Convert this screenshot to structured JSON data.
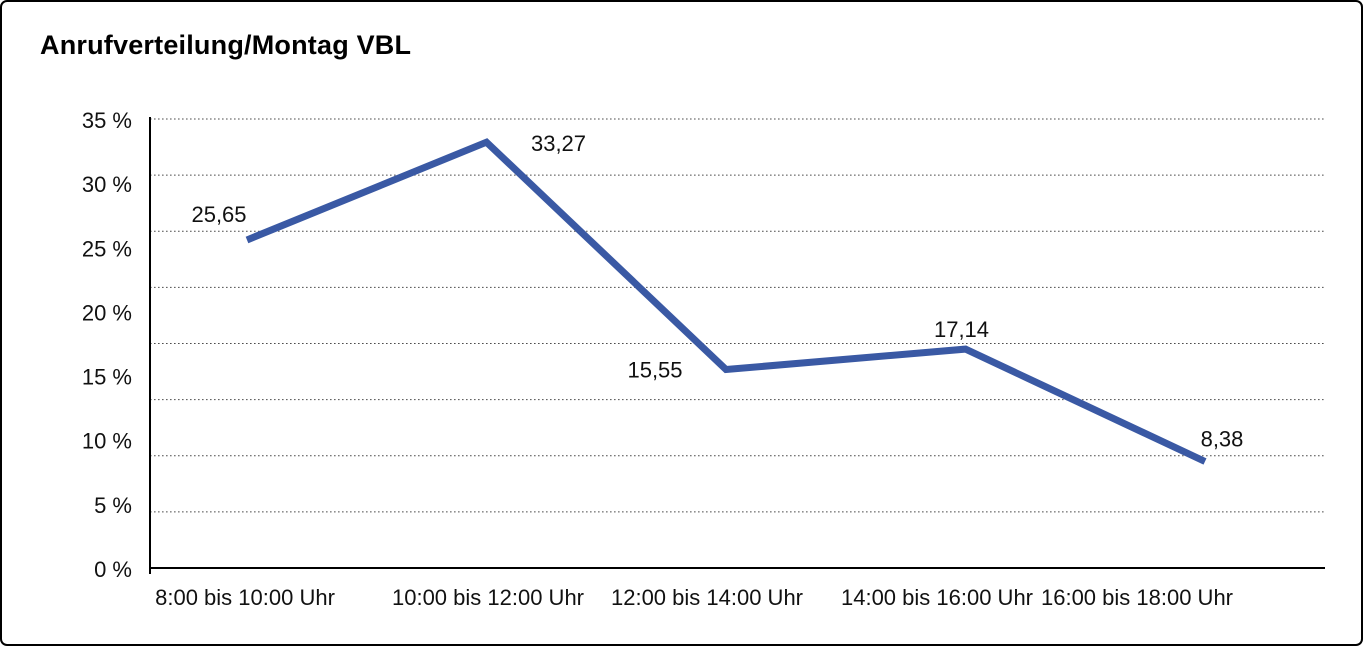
{
  "title": "Anrufverteilung/Montag VBL",
  "chart_data": {
    "type": "line",
    "title": "Anrufverteilung/Montag VBL",
    "categories": [
      "8:00 bis 10:00 Uhr",
      "10:00 bis 12:00 Uhr",
      "12:00 bis 14:00 Uhr",
      "14:00 bis 16:00 Uhr",
      "16:00 bis 18:00 Uhr"
    ],
    "values": [
      25.65,
      33.27,
      15.55,
      17.14,
      8.38
    ],
    "point_labels": [
      "25,65",
      "33,27",
      "15,55",
      "17,14",
      "8,38"
    ],
    "xlabel": "",
    "ylabel": "",
    "ylim": [
      0,
      35
    ],
    "y_tick_values": [
      0,
      5,
      10,
      15,
      20,
      25,
      30,
      35
    ],
    "y_tick_labels": [
      "0 %",
      "5 %",
      "10 %",
      "15 %",
      "20 %",
      "25 %",
      "30 %",
      "35 %"
    ],
    "grid": "horizontal dotted",
    "legend": "none",
    "line_color": "#3A59A4",
    "axis_color": "#000000",
    "gridline_color": "#4D4D4D",
    "text_color": "#111111"
  }
}
